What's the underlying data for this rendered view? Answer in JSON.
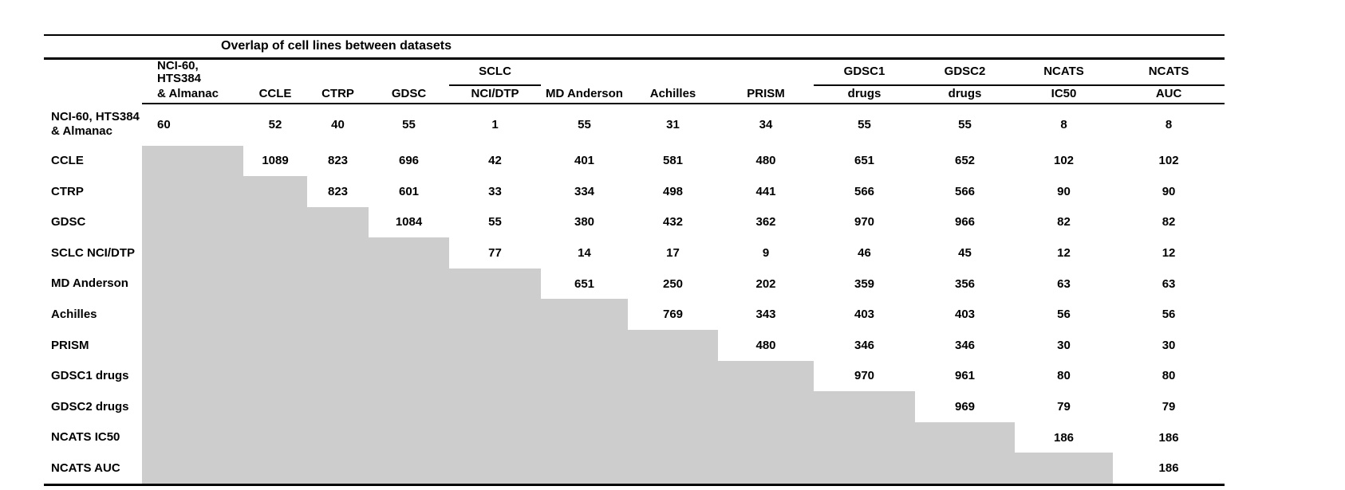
{
  "title": "Overlap of cell lines between datasets",
  "colors": {
    "shaded_cell": "#cdcdcd",
    "rule": "#000000",
    "background": "#ffffff"
  },
  "table": {
    "columns": [
      {
        "top": "NCI-60, HTS384",
        "bottom": "& Almanac",
        "group_underline": false
      },
      {
        "top": "",
        "bottom": "CCLE",
        "group_underline": false
      },
      {
        "top": "",
        "bottom": "CTRP",
        "group_underline": false
      },
      {
        "top": "",
        "bottom": "GDSC",
        "group_underline": false
      },
      {
        "top": "SCLC",
        "bottom": "NCI/DTP",
        "group_underline": true
      },
      {
        "top": "",
        "bottom": "MD Anderson",
        "group_underline": false
      },
      {
        "top": "",
        "bottom": "Achilles",
        "group_underline": false
      },
      {
        "top": "",
        "bottom": "PRISM",
        "group_underline": false
      },
      {
        "top": "GDSC1",
        "bottom": "drugs",
        "group_underline": true
      },
      {
        "top": "GDSC2",
        "bottom": "drugs",
        "group_underline": true
      },
      {
        "top": "NCATS",
        "bottom": "IC50",
        "group_underline": true
      },
      {
        "top": "NCATS",
        "bottom": "AUC",
        "group_underline": true
      }
    ],
    "rows": [
      {
        "label": "NCI-60, HTS384",
        "label2": "& Almanac",
        "values": [
          60,
          52,
          40,
          55,
          1,
          55,
          31,
          34,
          55,
          55,
          8,
          8
        ]
      },
      {
        "label": "CCLE",
        "label2": null,
        "values": [
          null,
          1089,
          823,
          696,
          42,
          401,
          581,
          480,
          651,
          652,
          102,
          102
        ]
      },
      {
        "label": "CTRP",
        "label2": null,
        "values": [
          null,
          null,
          823,
          601,
          33,
          334,
          498,
          441,
          566,
          566,
          90,
          90
        ]
      },
      {
        "label": "GDSC",
        "label2": null,
        "values": [
          null,
          null,
          null,
          1084,
          55,
          380,
          432,
          362,
          970,
          966,
          82,
          82
        ]
      },
      {
        "label": "SCLC NCI/DTP",
        "label2": null,
        "values": [
          null,
          null,
          null,
          null,
          77,
          14,
          17,
          9,
          46,
          45,
          12,
          12
        ]
      },
      {
        "label": "MD Anderson",
        "label2": null,
        "values": [
          null,
          null,
          null,
          null,
          null,
          651,
          250,
          202,
          359,
          356,
          63,
          63
        ]
      },
      {
        "label": "Achilles",
        "label2": null,
        "values": [
          null,
          null,
          null,
          null,
          null,
          null,
          769,
          343,
          403,
          403,
          56,
          56
        ]
      },
      {
        "label": "PRISM",
        "label2": null,
        "values": [
          null,
          null,
          null,
          null,
          null,
          null,
          null,
          480,
          346,
          346,
          30,
          30
        ]
      },
      {
        "label": "GDSC1 drugs",
        "label2": null,
        "values": [
          null,
          null,
          null,
          null,
          null,
          null,
          null,
          null,
          970,
          961,
          80,
          80
        ]
      },
      {
        "label": "GDSC2 drugs",
        "label2": null,
        "values": [
          null,
          null,
          null,
          null,
          null,
          null,
          null,
          null,
          null,
          969,
          79,
          79
        ]
      },
      {
        "label": "NCATS IC50",
        "label2": null,
        "values": [
          null,
          null,
          null,
          null,
          null,
          null,
          null,
          null,
          null,
          null,
          186,
          186
        ]
      },
      {
        "label": "NCATS AUC",
        "label2": null,
        "values": [
          null,
          null,
          null,
          null,
          null,
          null,
          null,
          null,
          null,
          null,
          null,
          186
        ]
      }
    ]
  }
}
